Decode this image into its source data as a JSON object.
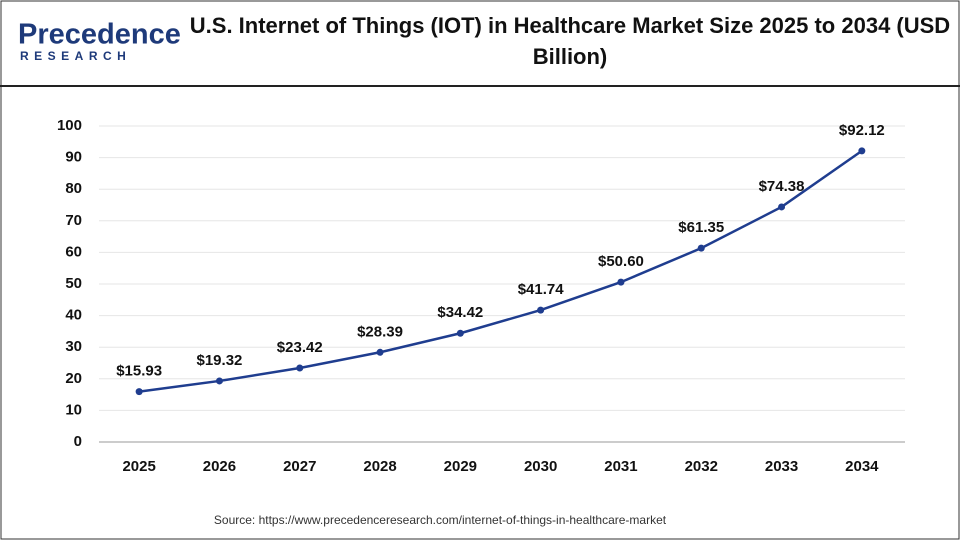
{
  "logo": {
    "name": "Precedence",
    "tagline": "RESEARCH"
  },
  "chart_data": {
    "type": "line",
    "title": "U.S. Internet of Things (IOT) in Healthcare Market Size 2025 to 2034 (USD Billion)",
    "categories": [
      "2025",
      "2026",
      "2027",
      "2028",
      "2029",
      "2030",
      "2031",
      "2032",
      "2033",
      "2034"
    ],
    "values": [
      15.93,
      19.32,
      23.42,
      28.39,
      34.42,
      41.74,
      50.6,
      61.35,
      74.38,
      92.12
    ],
    "value_labels": [
      "$15.93",
      "$19.32",
      "$23.42",
      "$28.39",
      "$34.42",
      "$41.74",
      "$50.60",
      "$61.35",
      "$74.38",
      "$92.12"
    ],
    "color": "#1f3d8f",
    "ylim": [
      0,
      100
    ],
    "yticks": [
      0,
      10,
      20,
      30,
      40,
      50,
      60,
      70,
      80,
      90,
      100
    ],
    "grid": true,
    "source": "Source: https://www.precedenceresearch.com/internet-of-things-in-healthcare-market"
  }
}
